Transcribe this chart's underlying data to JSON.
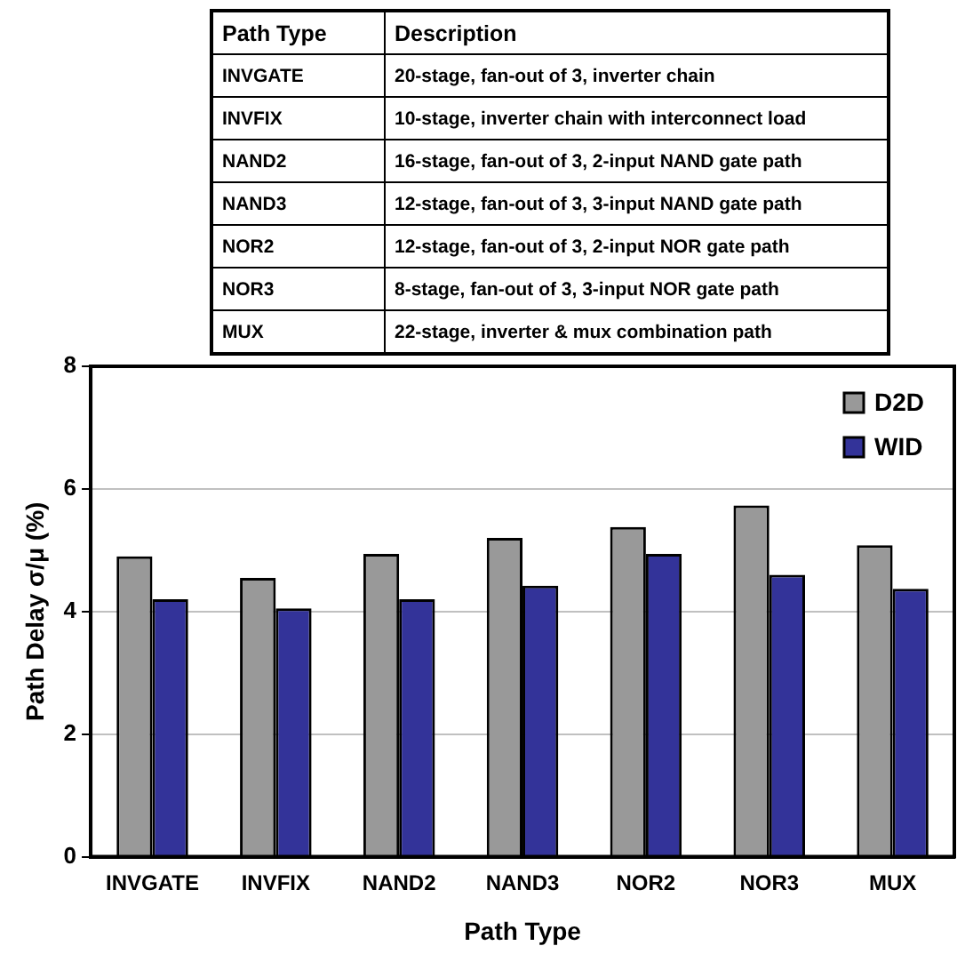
{
  "chart_data": {
    "type": "bar",
    "xlabel": "Path Type",
    "ylabel": "Path Delay σ/μ (%)",
    "categories": [
      "INVGATE",
      "INVFIX",
      "NAND2",
      "NAND3",
      "NOR2",
      "NOR3",
      "MUX"
    ],
    "series": [
      {
        "name": "D2D",
        "color": "#999999",
        "values": [
          4.9,
          4.55,
          4.94,
          5.2,
          5.38,
          5.73,
          5.08
        ]
      },
      {
        "name": "WID",
        "color": "#333399",
        "values": [
          4.2,
          4.05,
          4.2,
          4.42,
          4.94,
          4.6,
          4.37
        ]
      }
    ],
    "ylim": [
      0,
      8
    ],
    "yticks": [
      0,
      2,
      4,
      6,
      8
    ],
    "grid": "y",
    "legend": "top right",
    "annotations": [
      "Path Type",
      "Description",
      "INVGATE",
      "20-stage, fan-out of 3, inverter chain",
      "INVFIX",
      "10-stage, inverter chain with interconnect load",
      "NAND2",
      "16-stage, fan-out of 3, 2-input NAND gate path",
      "NAND3",
      "12-stage, fan-out of 3, 3-input NAND gate path",
      "NOR2",
      "12-stage, fan-out of 3, 2-input NOR gate path",
      "NOR3",
      "8-stage, fan-out of 3, 3-input NOR gate path",
      "MUX",
      "22-stage, inverter & mux combination path"
    ]
  }
}
